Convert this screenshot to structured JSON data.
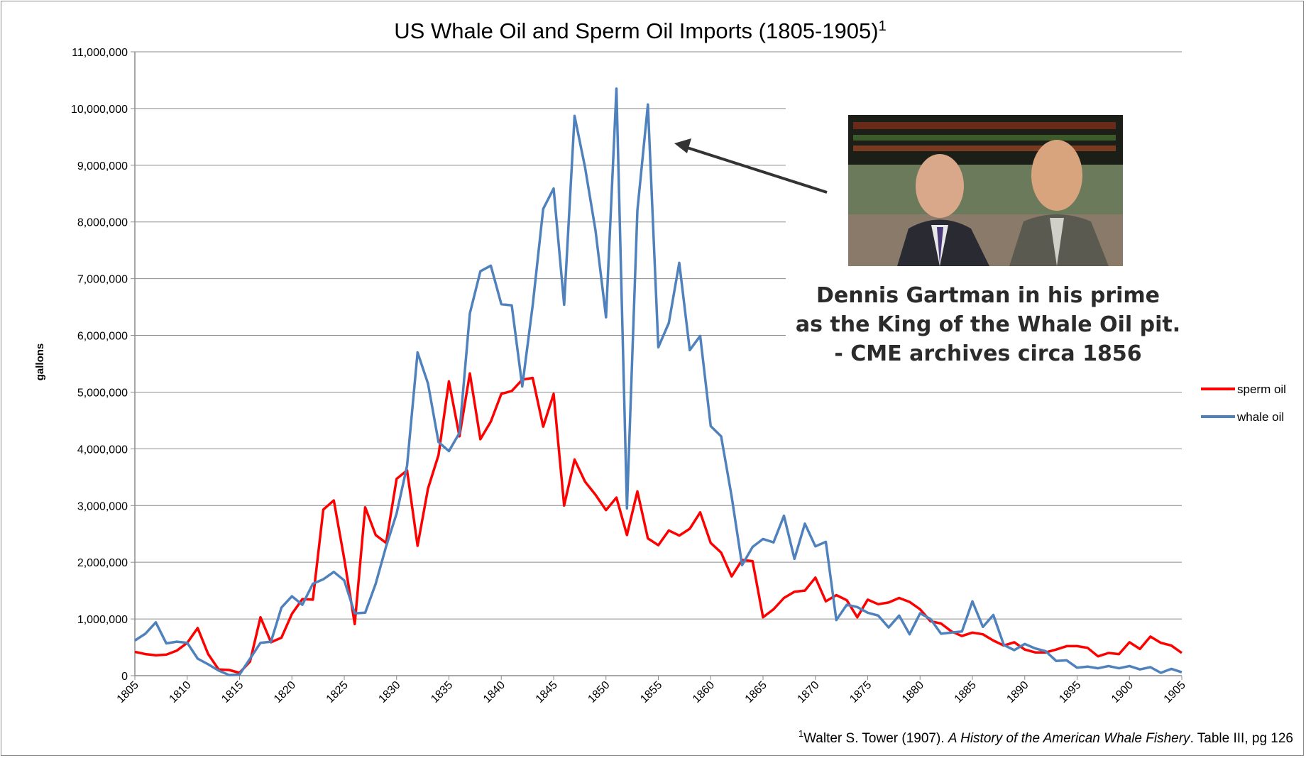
{
  "chart_data": {
    "type": "line",
    "title": "US Whale Oil and Sperm Oil Imports (1805-1905)",
    "title_superscript": "1",
    "xlabel": "",
    "ylabel": "gallons",
    "xlim": [
      1805,
      1905
    ],
    "ylim": [
      0,
      11000000
    ],
    "x_ticks": [
      1805,
      1810,
      1815,
      1820,
      1825,
      1830,
      1835,
      1840,
      1845,
      1850,
      1855,
      1860,
      1865,
      1870,
      1875,
      1880,
      1885,
      1890,
      1895,
      1900,
      1905
    ],
    "y_ticks": [
      0,
      1000000,
      2000000,
      3000000,
      4000000,
      5000000,
      6000000,
      7000000,
      8000000,
      9000000,
      10000000,
      11000000
    ],
    "y_tick_labels": [
      "0",
      "1,000,000",
      "2,000,000",
      "3,000,000",
      "4,000,000",
      "5,000,000",
      "6,000,000",
      "7,000,000",
      "8,000,000",
      "9,000,000",
      "10,000,000",
      "11,000,000"
    ],
    "grid": true,
    "legend_position": "right",
    "x": [
      1805,
      1806,
      1807,
      1808,
      1809,
      1810,
      1811,
      1812,
      1813,
      1814,
      1815,
      1816,
      1817,
      1818,
      1819,
      1820,
      1821,
      1822,
      1823,
      1824,
      1825,
      1826,
      1827,
      1828,
      1829,
      1830,
      1831,
      1832,
      1833,
      1834,
      1835,
      1836,
      1837,
      1838,
      1839,
      1840,
      1841,
      1842,
      1843,
      1844,
      1845,
      1846,
      1847,
      1848,
      1849,
      1850,
      1851,
      1852,
      1853,
      1854,
      1855,
      1856,
      1857,
      1858,
      1859,
      1860,
      1861,
      1862,
      1863,
      1864,
      1865,
      1866,
      1867,
      1868,
      1869,
      1870,
      1871,
      1872,
      1873,
      1874,
      1875,
      1876,
      1877,
      1878,
      1879,
      1880,
      1881,
      1882,
      1883,
      1884,
      1885,
      1886,
      1887,
      1888,
      1889,
      1890,
      1891,
      1892,
      1893,
      1894,
      1895,
      1896,
      1897,
      1898,
      1899,
      1900,
      1901,
      1902,
      1903,
      1904,
      1905
    ],
    "series": [
      {
        "name": "sperm oil",
        "color": "#ff0000",
        "values": [
          420000,
          380000,
          360000,
          370000,
          440000,
          580000,
          840000,
          380000,
          110000,
          100000,
          50000,
          250000,
          1030000,
          590000,
          670000,
          1090000,
          1350000,
          1340000,
          2930000,
          3090000,
          2060000,
          910000,
          2970000,
          2480000,
          2340000,
          3470000,
          3620000,
          2290000,
          3300000,
          3890000,
          5190000,
          4220000,
          5330000,
          4170000,
          4480000,
          4970000,
          5020000,
          5220000,
          5250000,
          4390000,
          4970000,
          3000000,
          3810000,
          3420000,
          3190000,
          2920000,
          3140000,
          2480000,
          3250000,
          2420000,
          2300000,
          2560000,
          2470000,
          2590000,
          2880000,
          2340000,
          2170000,
          1750000,
          2040000,
          2020000,
          1030000,
          1170000,
          1370000,
          1480000,
          1500000,
          1730000,
          1310000,
          1420000,
          1330000,
          1030000,
          1340000,
          1260000,
          1290000,
          1370000,
          1300000,
          1170000,
          960000,
          920000,
          780000,
          700000,
          760000,
          730000,
          620000,
          530000,
          590000,
          460000,
          410000,
          410000,
          460000,
          520000,
          520000,
          490000,
          340000,
          400000,
          380000,
          590000,
          470000,
          690000,
          580000,
          530000,
          400000
        ]
      },
      {
        "name": "whale oil",
        "color": "#4f81bd",
        "values": [
          620000,
          740000,
          940000,
          570000,
          600000,
          580000,
          300000,
          200000,
          90000,
          10000,
          20000,
          300000,
          580000,
          600000,
          1200000,
          1400000,
          1250000,
          1620000,
          1700000,
          1830000,
          1680000,
          1100000,
          1110000,
          1620000,
          2280000,
          2860000,
          3700000,
          5700000,
          5150000,
          4120000,
          3960000,
          4280000,
          6390000,
          7130000,
          7230000,
          6550000,
          6530000,
          5100000,
          6530000,
          8230000,
          8590000,
          6540000,
          9870000,
          8960000,
          7850000,
          6320000,
          10350000,
          2950000,
          8200000,
          10070000,
          5790000,
          6220000,
          7280000,
          5740000,
          5990000,
          4400000,
          4220000,
          3160000,
          1950000,
          2270000,
          2410000,
          2350000,
          2820000,
          2060000,
          2680000,
          2280000,
          2360000,
          980000,
          1250000,
          1210000,
          1110000,
          1060000,
          850000,
          1060000,
          730000,
          1100000,
          1000000,
          740000,
          760000,
          780000,
          1310000,
          860000,
          1070000,
          540000,
          450000,
          560000,
          480000,
          430000,
          260000,
          270000,
          140000,
          160000,
          130000,
          170000,
          130000,
          170000,
          110000,
          150000,
          50000,
          120000,
          60000
        ]
      }
    ]
  },
  "callout": {
    "photo_description_icon": "photo-two-men-trading-floor",
    "caption_lines": [
      "Dennis Gartman in his prime",
      "as the King of the Whale Oil pit.",
      "- CME archives circa 1856"
    ]
  },
  "footnote": {
    "superscript": "1",
    "prefix": "Walter S. Tower (1907). ",
    "italic": "A History of the American Whale Fishery",
    "suffix": ". Table III, pg 126"
  }
}
